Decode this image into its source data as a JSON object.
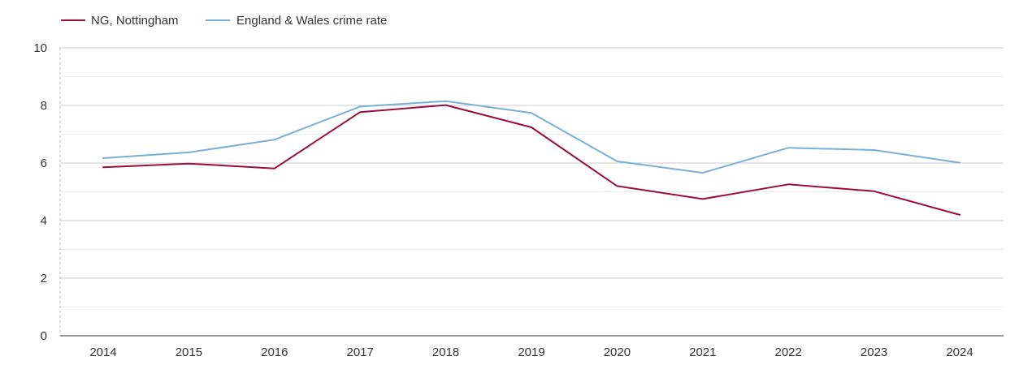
{
  "chart_data": {
    "type": "line",
    "title": "",
    "xlabel": "",
    "ylabel": "",
    "categories": [
      "2014",
      "2015",
      "2016",
      "2017",
      "2018",
      "2019",
      "2020",
      "2021",
      "2022",
      "2023",
      "2024"
    ],
    "ylim": [
      0,
      10
    ],
    "yticks": [
      "0",
      "2",
      "4",
      "6",
      "8",
      "10"
    ],
    "grid": true,
    "legend_position": "top-left",
    "series": [
      {
        "name": "NG, Nottingham",
        "color": "#9b0e38",
        "values": [
          5.85,
          5.98,
          5.81,
          7.77,
          8.01,
          7.24,
          5.2,
          4.75,
          5.26,
          5.02,
          4.2
        ]
      },
      {
        "name": "England & Wales crime rate",
        "color": "#7ab0d4",
        "values": [
          6.17,
          6.37,
          6.81,
          7.96,
          8.15,
          7.74,
          6.06,
          5.66,
          6.53,
          6.45,
          6.01
        ]
      }
    ]
  }
}
